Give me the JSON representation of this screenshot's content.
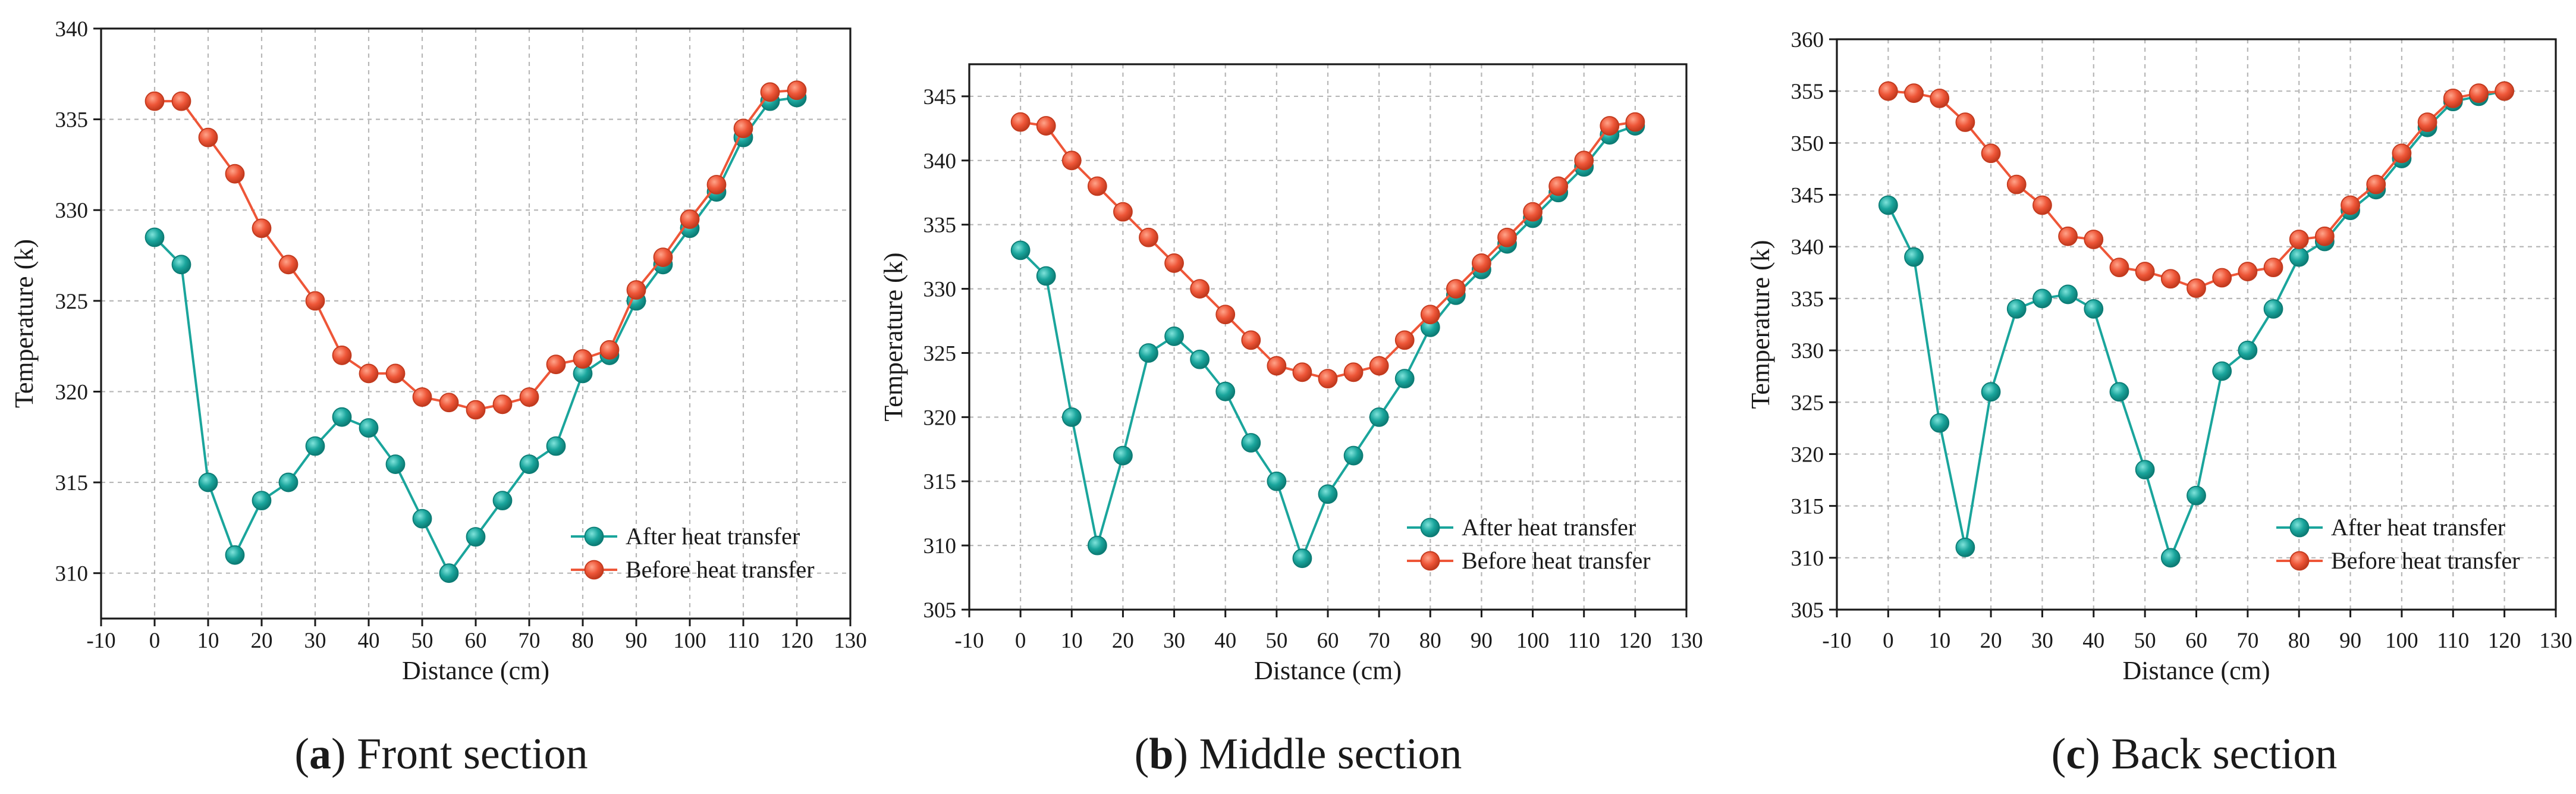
{
  "colors": {
    "after": "#1aa59c",
    "after_highlight": "#7fe3db",
    "after_edge": "#0c7c75",
    "before": "#ee5638",
    "before_highlight": "#ffa48a",
    "before_edge": "#c23a1e"
  },
  "chart_data": [
    {
      "type": "line",
      "panel_letter": "a",
      "caption": "Front section",
      "xlabel": "Distance (cm)",
      "ylabel": "Temperature (k)",
      "xlim": [
        -10,
        130
      ],
      "ylim": [
        307.5,
        340
      ],
      "xticks": [
        -10,
        0,
        10,
        20,
        30,
        40,
        50,
        60,
        70,
        80,
        90,
        100,
        110,
        120,
        130
      ],
      "yticks": [
        310,
        315,
        320,
        325,
        330,
        335,
        340
      ],
      "grid": true,
      "legend_position": "bottom-right",
      "x": [
        0,
        5,
        10,
        15,
        20,
        25,
        30,
        35,
        40,
        45,
        50,
        55,
        60,
        65,
        70,
        75,
        80,
        85,
        90,
        95,
        100,
        105,
        110,
        115,
        120
      ],
      "series": [
        {
          "name": "After heat transfer",
          "values": [
            328.5,
            327,
            315,
            311,
            314,
            315,
            317,
            318.6,
            318,
            316,
            313,
            310,
            312,
            314,
            316,
            317,
            321,
            322,
            325,
            327,
            329,
            331,
            334,
            336,
            336.2
          ]
        },
        {
          "name": "Before heat transfer",
          "values": [
            336,
            336,
            334,
            332,
            329,
            327,
            325,
            322,
            321,
            321,
            319.7,
            319.4,
            319,
            319.3,
            319.7,
            321.5,
            321.8,
            322.3,
            325.6,
            327.4,
            329.5,
            331.4,
            334.5,
            336.5,
            336.6
          ]
        }
      ]
    },
    {
      "type": "line",
      "panel_letter": "b",
      "caption": "Middle section",
      "xlabel": "Distance (cm)",
      "ylabel": "Temperature (k)",
      "xlim": [
        -10,
        130
      ],
      "ylim": [
        305,
        347.5
      ],
      "xticks": [
        -10,
        0,
        10,
        20,
        30,
        40,
        50,
        60,
        70,
        80,
        90,
        100,
        110,
        120,
        130
      ],
      "yticks": [
        305,
        310,
        315,
        320,
        325,
        330,
        335,
        340,
        345
      ],
      "grid": true,
      "legend_position": "bottom-right",
      "x": [
        0,
        5,
        10,
        15,
        20,
        25,
        30,
        35,
        40,
        45,
        50,
        55,
        60,
        65,
        70,
        75,
        80,
        85,
        90,
        95,
        100,
        105,
        110,
        115,
        120
      ],
      "series": [
        {
          "name": "After heat transfer",
          "values": [
            333,
            331,
            320,
            310,
            317,
            325,
            326.3,
            324.5,
            322,
            318,
            315,
            309,
            314,
            317,
            320,
            323,
            327,
            329.5,
            331.5,
            333.5,
            335.5,
            337.5,
            339.5,
            342,
            342.7
          ]
        },
        {
          "name": "Before heat transfer",
          "values": [
            343,
            342.7,
            340,
            338,
            336,
            334,
            332,
            330,
            328,
            326,
            324,
            323.5,
            323,
            323.5,
            324,
            326,
            328,
            330,
            332,
            334,
            336,
            338,
            340,
            342.7,
            343
          ]
        }
      ]
    },
    {
      "type": "line",
      "panel_letter": "c",
      "caption": "Back section",
      "xlabel": "Distance (cm)",
      "ylabel": "Temperature (k)",
      "xlim": [
        -10,
        130
      ],
      "ylim": [
        305,
        360
      ],
      "xticks": [
        -10,
        0,
        10,
        20,
        30,
        40,
        50,
        60,
        70,
        80,
        90,
        100,
        110,
        120,
        130
      ],
      "yticks": [
        305,
        310,
        315,
        320,
        325,
        330,
        335,
        340,
        345,
        350,
        355,
        360
      ],
      "grid": true,
      "legend_position": "bottom-right",
      "x": [
        0,
        5,
        10,
        15,
        20,
        25,
        30,
        35,
        40,
        45,
        50,
        55,
        60,
        65,
        70,
        75,
        80,
        85,
        90,
        95,
        100,
        105,
        110,
        115,
        120
      ],
      "series": [
        {
          "name": "After heat transfer",
          "values": [
            344,
            339,
            323,
            311,
            326,
            334,
            335,
            335.4,
            334,
            326,
            318.5,
            310,
            316,
            328,
            330,
            334,
            339,
            340.5,
            343.5,
            345.5,
            348.5,
            351.5,
            354,
            354.5,
            355
          ]
        },
        {
          "name": "Before heat transfer",
          "values": [
            355,
            354.8,
            354.3,
            352,
            349,
            346,
            344,
            341,
            340.7,
            338,
            337.6,
            336.9,
            336,
            337,
            337.6,
            338,
            340.7,
            341,
            344,
            346,
            349,
            352,
            354.3,
            354.8,
            355
          ]
        }
      ]
    }
  ]
}
